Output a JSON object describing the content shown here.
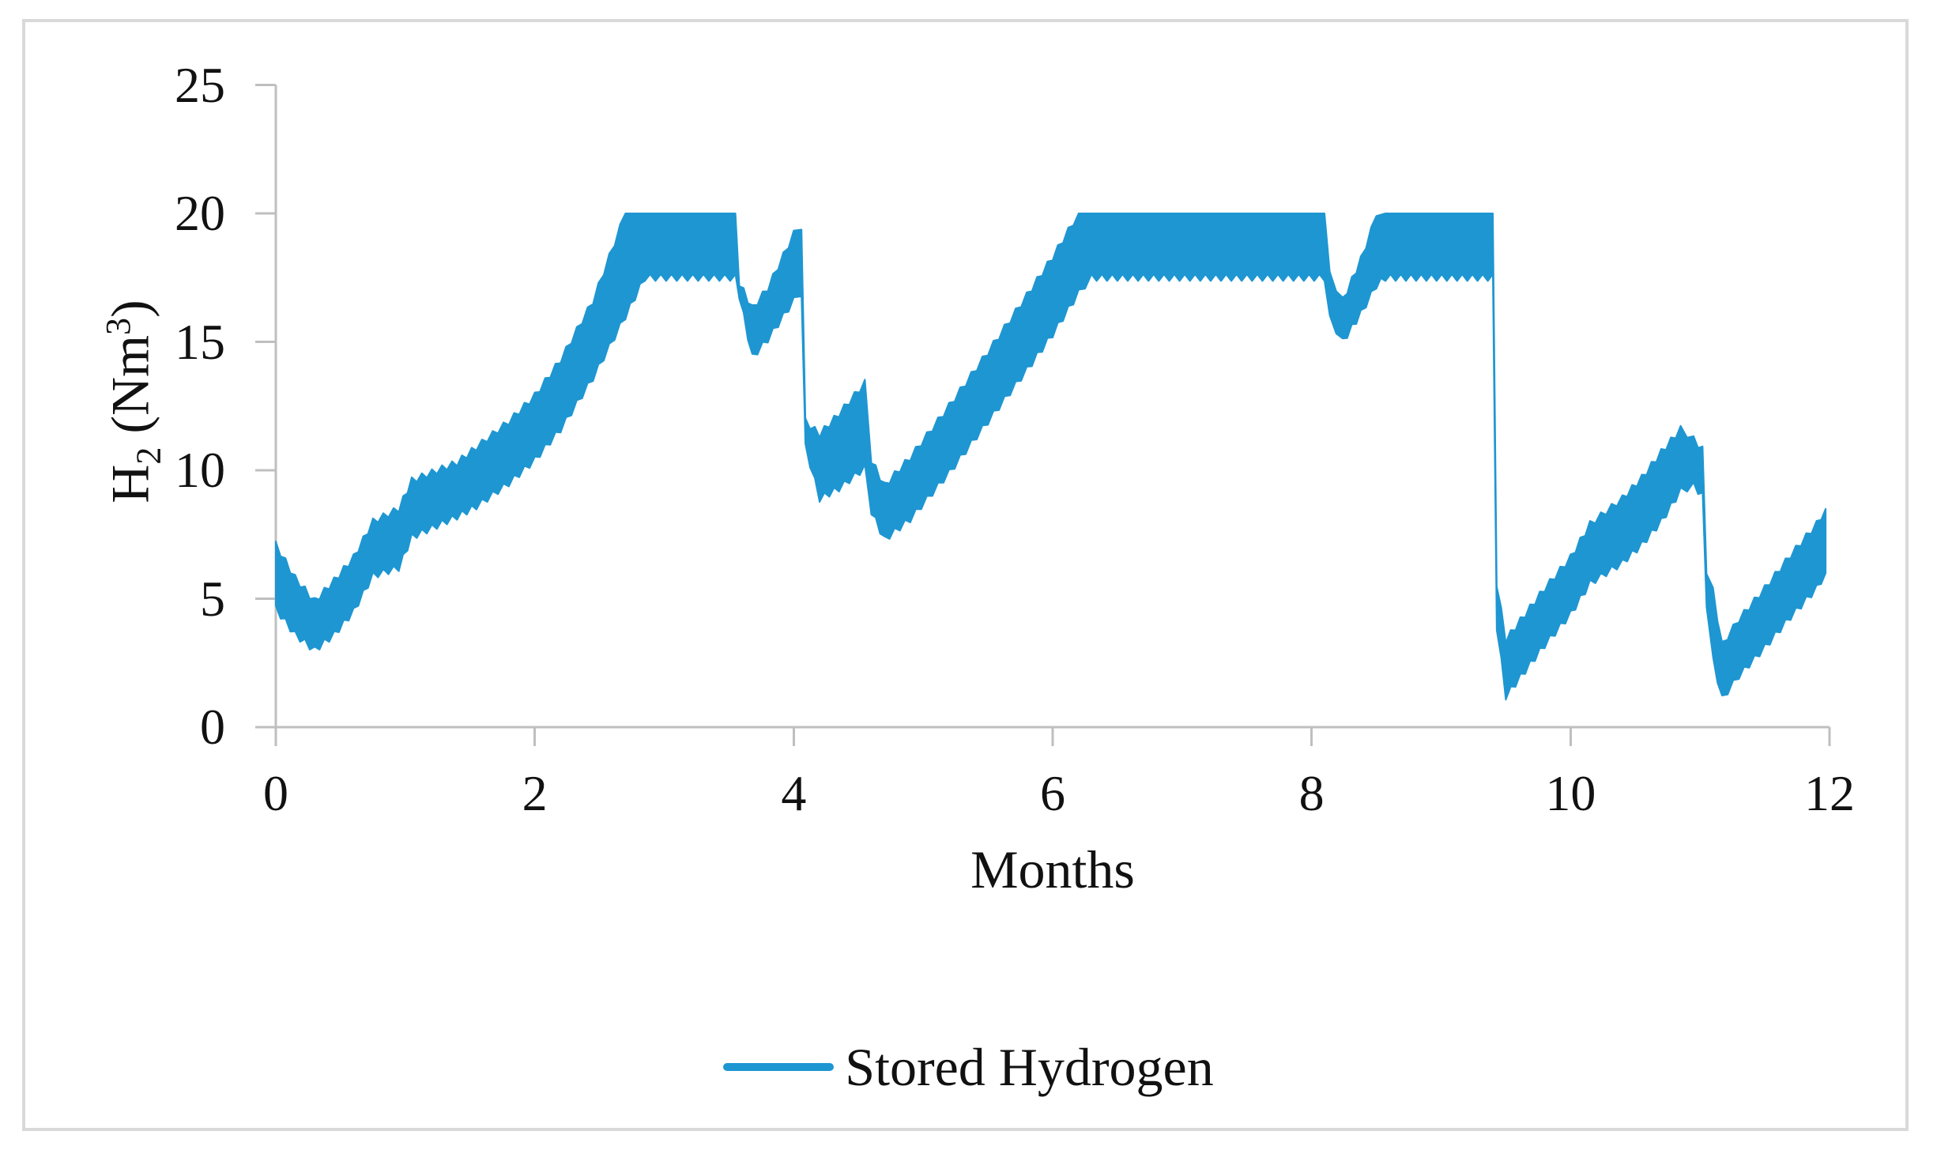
{
  "figure": {
    "background": "#ffffff",
    "border_color": "#d9d9d9"
  },
  "axis": {
    "line_color": "#bfbfbf",
    "text_color": "#111111"
  },
  "legend": {
    "label": "Stored Hydrogen"
  },
  "chart_data": {
    "type": "area",
    "band": true,
    "title": "",
    "xlabel": "Months",
    "ylabel": "H₂ (Nm³)",
    "ylabel_parts": {
      "base": "H",
      "sub": "2",
      "mid": " (Nm",
      "sup": "3",
      "end": ")"
    },
    "xlim": [
      0,
      12
    ],
    "ylim": [
      0,
      25
    ],
    "x_ticks": [
      0,
      2,
      4,
      6,
      8,
      10,
      12
    ],
    "y_ticks": [
      0,
      5,
      10,
      15,
      20,
      25
    ],
    "grid": false,
    "legend_position": "bottom",
    "storage_cap": 20.0,
    "series": [
      {
        "name": "Stored Hydrogen",
        "color": "#1e96d2",
        "x": [
          0.0,
          0.15,
          0.3,
          0.45,
          0.6,
          0.75,
          0.95,
          1.05,
          1.4,
          1.55,
          1.8,
          2.0,
          2.2,
          2.45,
          2.7,
          2.85,
          3.55,
          3.58,
          3.68,
          3.8,
          4.0,
          4.06,
          4.09,
          4.2,
          4.35,
          4.55,
          4.6,
          4.7,
          4.9,
          5.2,
          5.5,
          5.8,
          6.0,
          6.2,
          6.3,
          8.1,
          8.14,
          8.24,
          8.38,
          8.5,
          8.57,
          9.4,
          9.43,
          9.5,
          9.65,
          9.8,
          10.0,
          10.15,
          10.4,
          10.55,
          10.7,
          10.85,
          10.95,
          11.02,
          11.05,
          11.1,
          11.17,
          11.3,
          11.5,
          11.7,
          11.9,
          11.97
        ],
        "lower": [
          4.6,
          3.6,
          3.0,
          3.6,
          4.5,
          5.9,
          6.2,
          7.4,
          8.2,
          8.6,
          9.5,
          10.4,
          11.6,
          13.6,
          16.0,
          17.5,
          17.5,
          16.8,
          14.4,
          15.1,
          16.6,
          16.9,
          10.9,
          8.9,
          9.3,
          10.1,
          8.4,
          7.3,
          8.1,
          9.9,
          11.9,
          13.9,
          15.3,
          16.9,
          17.5,
          17.5,
          15.9,
          15.0,
          16.1,
          17.2,
          17.5,
          17.5,
          3.9,
          1.2,
          2.2,
          3.2,
          4.4,
          5.6,
          6.4,
          7.1,
          8.0,
          9.2,
          9.4,
          9.0,
          4.8,
          2.6,
          1.1,
          2.0,
          3.1,
          4.3,
          5.4,
          6.0
        ],
        "upper": [
          7.1,
          5.8,
          4.9,
          5.7,
          6.6,
          8.0,
          8.5,
          9.6,
          10.3,
          10.9,
          11.9,
          12.9,
          14.3,
          16.6,
          20.0,
          20.0,
          20.0,
          17.3,
          16.3,
          17.1,
          19.2,
          19.5,
          11.9,
          11.4,
          12.2,
          13.4,
          10.4,
          9.4,
          10.5,
          12.5,
          14.6,
          16.8,
          18.3,
          20.0,
          20.0,
          20.0,
          17.6,
          16.6,
          18.2,
          19.9,
          20.0,
          20.0,
          5.6,
          3.4,
          4.4,
          5.4,
          6.6,
          7.9,
          8.9,
          9.7,
          10.7,
          11.6,
          11.2,
          10.8,
          6.1,
          5.3,
          3.2,
          4.2,
          5.4,
          6.7,
          7.9,
          8.5
        ]
      }
    ]
  }
}
